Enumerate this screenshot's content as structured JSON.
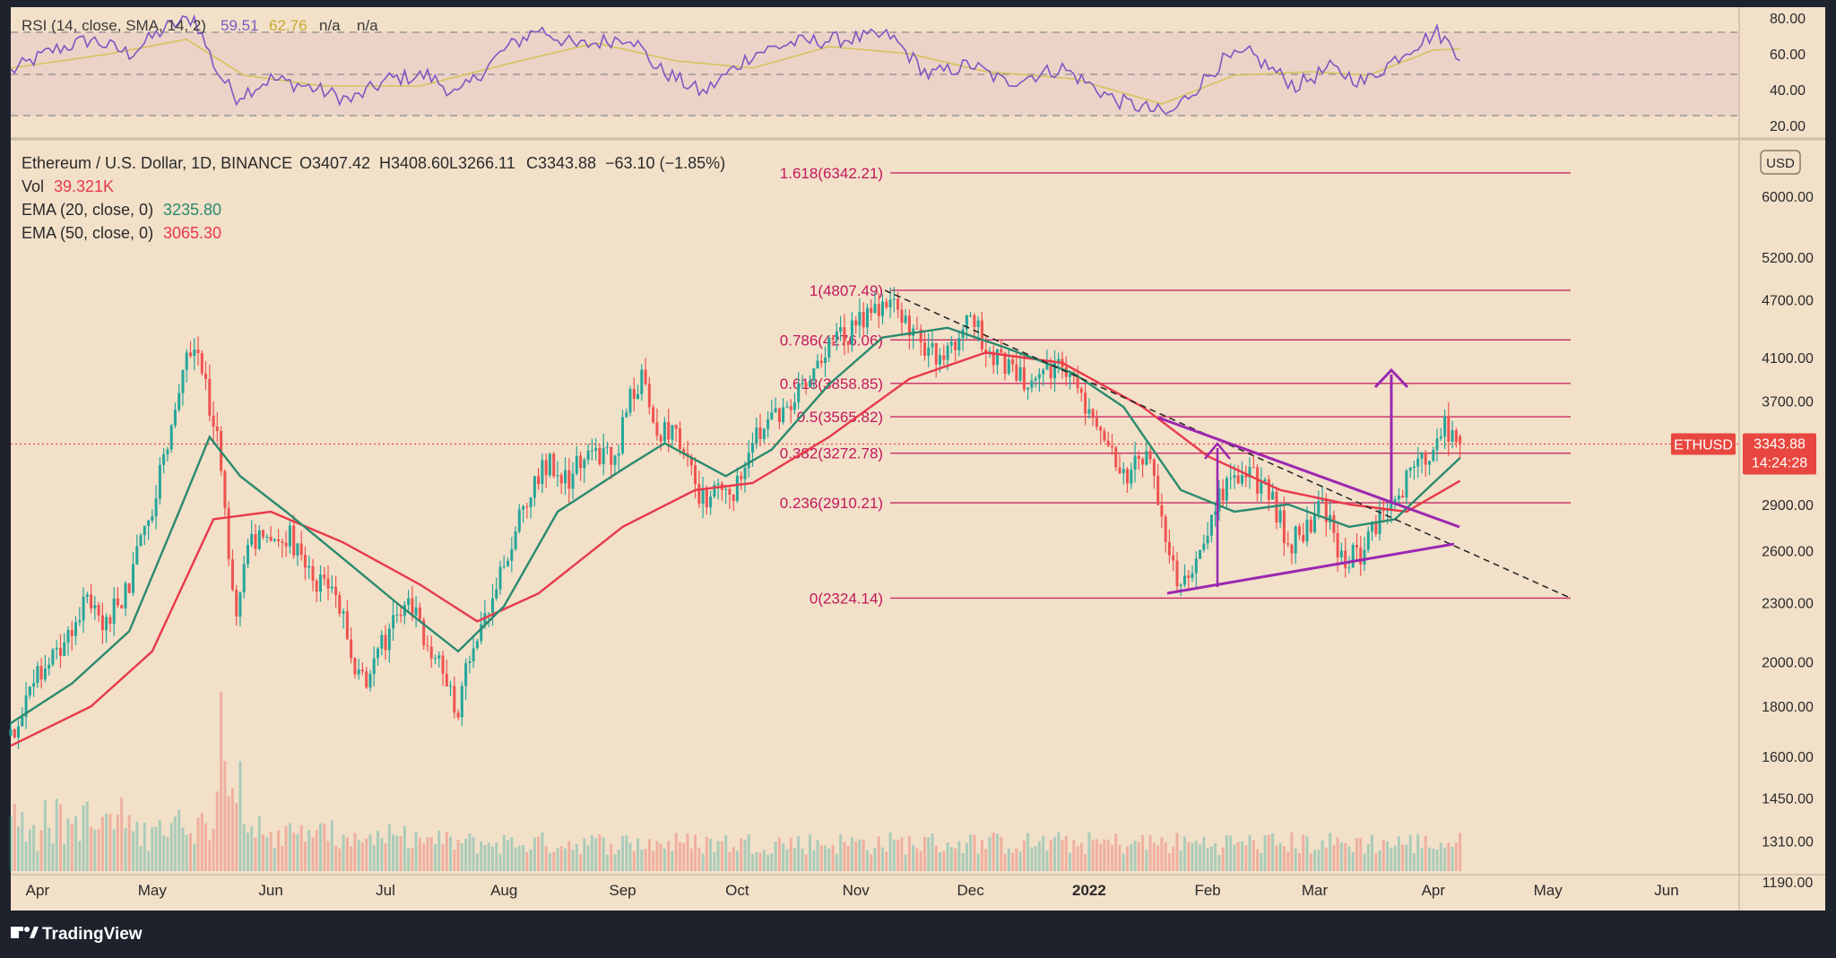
{
  "branding": {
    "logo_text": "TradingView"
  },
  "rsi": {
    "legend_label": "RSI (14, close, SMA, 14, 2)",
    "value1": "59.51",
    "value2": "62.76",
    "value3": "n/a",
    "value4": "n/a",
    "axis_ticks": [
      "80.00",
      "60.00",
      "40.00",
      "20.00"
    ],
    "upper_band": 70,
    "lower_band": 30
  },
  "legend": {
    "symbol": "Ethereum / U.S. Dollar, 1D, BINANCE",
    "o": "O3407.42",
    "h": "H3408.60",
    "l": "L3266.11",
    "c": "C3343.88",
    "change": "−63.10 (−1.85%)",
    "vol_label": "Vol",
    "vol_value": "39.321K",
    "ema20_label": "EMA (20, close, 0)",
    "ema20_value": "3235.80",
    "ema50_label": "EMA (50, close, 0)",
    "ema50_value": "3065.30"
  },
  "price_axis": {
    "currency": "USD",
    "ticks": [
      "6000.00",
      "5200.00",
      "4700.00",
      "4100.00",
      "3700.00",
      "2900.00",
      "2600.00",
      "2300.00",
      "2000.00",
      "1800.00",
      "1600.00",
      "1450.00",
      "1310.00",
      "1190.00"
    ],
    "last_price": "3343.88",
    "countdown": "14:24:28",
    "ticker": "ETHUSD"
  },
  "time_axis": {
    "labels": [
      "Apr",
      "May",
      "Jun",
      "Jul",
      "Aug",
      "Sep",
      "Oct",
      "Nov",
      "Dec",
      "2022",
      "Feb",
      "Mar",
      "Apr",
      "May",
      "Jun"
    ]
  },
  "colors": {
    "background": "#f2e0c9",
    "up_candle": "#26a69a",
    "down_candle": "#ef5350",
    "ema20": "#2a8a6e",
    "ema50": "#e8394a",
    "rsi_line": "#7e57c2",
    "rsi_sma": "#d6c25a",
    "fib": "#c2185b",
    "pattern": "#9c27b0",
    "price_tag": "#e8473f"
  },
  "chart_data": {
    "type": "candlestick",
    "title": "Ethereum / U.S. Dollar, 1D, BINANCE",
    "y_scale": "log",
    "ylim": [
      1150,
      6800
    ],
    "x_range": [
      "2021-03-25",
      "2022-06-20"
    ],
    "fib_levels": [
      {
        "label": "1.618(6342.21)",
        "ratio": "1.618",
        "value": 6342.21
      },
      {
        "label": "1(4807.49)",
        "ratio": "1",
        "value": 4807.49
      },
      {
        "label": "0.786(4276.06)",
        "ratio": "0.786",
        "value": 4276.06
      },
      {
        "label": "0.618(3858.85)",
        "ratio": "0.618",
        "value": 3858.85
      },
      {
        "label": "0.5(3565.82)",
        "ratio": "0.5",
        "value": 3565.82
      },
      {
        "label": "0.382(3272.78)",
        "ratio": "0.382",
        "value": 3272.78
      },
      {
        "label": "0.236(2910.21)",
        "ratio": "0.236",
        "value": 2910.21
      },
      {
        "label": "0(2324.14)",
        "ratio": "0",
        "value": 2324.14
      }
    ],
    "fib_line_start": "2021-11-10",
    "fib_line_end": "2022-05-08",
    "price_path": [
      [
        "2021-03-25",
        1680
      ],
      [
        "2021-04-01",
        1950
      ],
      [
        "2021-04-07",
        2080
      ],
      [
        "2021-04-13",
        2300
      ],
      [
        "2021-04-19",
        2200
      ],
      [
        "2021-04-25",
        2400
      ],
      [
        "2021-05-01",
        2900
      ],
      [
        "2021-05-05",
        3400
      ],
      [
        "2021-05-09",
        3900
      ],
      [
        "2021-05-12",
        4300
      ],
      [
        "2021-05-15",
        3800
      ],
      [
        "2021-05-18",
        3400
      ],
      [
        "2021-05-20",
        2800
      ],
      [
        "2021-05-23",
        2200
      ],
      [
        "2021-05-26",
        2700
      ],
      [
        "2021-06-01",
        2600
      ],
      [
        "2021-06-06",
        2700
      ],
      [
        "2021-06-11",
        2450
      ],
      [
        "2021-06-16",
        2400
      ],
      [
        "2021-06-20",
        2200
      ],
      [
        "2021-06-23",
        1900
      ],
      [
        "2021-06-27",
        1950
      ],
      [
        "2021-07-02",
        2150
      ],
      [
        "2021-07-07",
        2300
      ],
      [
        "2021-07-12",
        2100
      ],
      [
        "2021-07-17",
        1900
      ],
      [
        "2021-07-20",
        1780
      ],
      [
        "2021-07-24",
        2100
      ],
      [
        "2021-07-30",
        2400
      ],
      [
        "2021-08-05",
        2800
      ],
      [
        "2021-08-12",
        3200
      ],
      [
        "2021-08-18",
        3100
      ],
      [
        "2021-08-24",
        3300
      ],
      [
        "2021-08-30",
        3200
      ],
      [
        "2021-09-03",
        3750
      ],
      [
        "2021-09-06",
        3900
      ],
      [
        "2021-09-09",
        3450
      ],
      [
        "2021-09-15",
        3500
      ],
      [
        "2021-09-21",
        2900
      ],
      [
        "2021-09-25",
        3000
      ],
      [
        "2021-09-30",
        2950
      ],
      [
        "2021-10-05",
        3450
      ],
      [
        "2021-10-12",
        3550
      ],
      [
        "2021-10-18",
        3850
      ],
      [
        "2021-10-24",
        4150
      ],
      [
        "2021-10-30",
        4350
      ],
      [
        "2021-11-05",
        4550
      ],
      [
        "2021-11-10",
        4750
      ],
      [
        "2021-11-16",
        4300
      ],
      [
        "2021-11-22",
        4150
      ],
      [
        "2021-11-28",
        4300
      ],
      [
        "2021-12-01",
        4550
      ],
      [
        "2021-12-05",
        4150
      ],
      [
        "2021-12-11",
        4000
      ],
      [
        "2021-12-17",
        3850
      ],
      [
        "2021-12-24",
        4050
      ],
      [
        "2021-12-30",
        3750
      ],
      [
        "2022-01-05",
        3450
      ],
      [
        "2022-01-10",
        3100
      ],
      [
        "2022-01-16",
        3300
      ],
      [
        "2022-01-21",
        2600
      ],
      [
        "2022-01-24",
        2400
      ],
      [
        "2022-01-30",
        2600
      ],
      [
        "2022-02-05",
        3000
      ],
      [
        "2022-02-10",
        3100
      ],
      [
        "2022-02-16",
        3050
      ],
      [
        "2022-02-22",
        2650
      ],
      [
        "2022-02-26",
        2700
      ],
      [
        "2022-03-03",
        2900
      ],
      [
        "2022-03-08",
        2550
      ],
      [
        "2022-03-14",
        2600
      ],
      [
        "2022-03-20",
        2900
      ],
      [
        "2022-03-26",
        3100
      ],
      [
        "2022-03-31",
        3300
      ],
      [
        "2022-04-03",
        3500
      ],
      [
        "2022-04-06",
        3420
      ],
      [
        "2022-04-08",
        3343.88
      ]
    ],
    "ema20_path": [
      [
        "2021-03-25",
        1730
      ],
      [
        "2021-04-10",
        1900
      ],
      [
        "2021-04-25",
        2150
      ],
      [
        "2021-05-08",
        2850
      ],
      [
        "2021-05-16",
        3400
      ],
      [
        "2021-05-24",
        3100
      ],
      [
        "2021-06-05",
        2850
      ],
      [
        "2021-06-20",
        2550
      ],
      [
        "2021-07-05",
        2280
      ],
      [
        "2021-07-20",
        2050
      ],
      [
        "2021-08-01",
        2280
      ],
      [
        "2021-08-15",
        2850
      ],
      [
        "2021-09-01",
        3150
      ],
      [
        "2021-09-12",
        3350
      ],
      [
        "2021-09-28",
        3100
      ],
      [
        "2021-10-10",
        3300
      ],
      [
        "2021-10-25",
        3850
      ],
      [
        "2021-11-08",
        4300
      ],
      [
        "2021-11-25",
        4400
      ],
      [
        "2021-12-10",
        4200
      ],
      [
        "2021-12-28",
        3950
      ],
      [
        "2022-01-10",
        3650
      ],
      [
        "2022-01-25",
        3000
      ],
      [
        "2022-02-08",
        2850
      ],
      [
        "2022-02-22",
        2900
      ],
      [
        "2022-03-10",
        2750
      ],
      [
        "2022-03-22",
        2800
      ],
      [
        "2022-04-01",
        3050
      ],
      [
        "2022-04-08",
        3235.8
      ]
    ],
    "ema50_path": [
      [
        "2021-03-25",
        1640
      ],
      [
        "2021-04-15",
        1800
      ],
      [
        "2021-05-01",
        2050
      ],
      [
        "2021-05-17",
        2800
      ],
      [
        "2021-06-01",
        2850
      ],
      [
        "2021-06-20",
        2650
      ],
      [
        "2021-07-10",
        2400
      ],
      [
        "2021-07-25",
        2200
      ],
      [
        "2021-08-10",
        2350
      ],
      [
        "2021-09-01",
        2750
      ],
      [
        "2021-09-20",
        3000
      ],
      [
        "2021-10-05",
        3050
      ],
      [
        "2021-10-25",
        3400
      ],
      [
        "2021-11-15",
        3900
      ],
      [
        "2021-12-05",
        4150
      ],
      [
        "2021-12-25",
        4050
      ],
      [
        "2022-01-15",
        3650
      ],
      [
        "2022-02-01",
        3250
      ],
      [
        "2022-02-20",
        3000
      ],
      [
        "2022-03-10",
        2900
      ],
      [
        "2022-03-25",
        2850
      ],
      [
        "2022-04-08",
        3065.3
      ]
    ],
    "rsi_path": [
      [
        "2021-03-25",
        50
      ],
      [
        "2021-04-05",
        62
      ],
      [
        "2021-04-15",
        68
      ],
      [
        "2021-04-25",
        60
      ],
      [
        "2021-05-05",
        75
      ],
      [
        "2021-05-12",
        80
      ],
      [
        "2021-05-18",
        50
      ],
      [
        "2021-05-23",
        36
      ],
      [
        "2021-06-01",
        46
      ],
      [
        "2021-06-10",
        42
      ],
      [
        "2021-06-22",
        34
      ],
      [
        "2021-07-02",
        46
      ],
      [
        "2021-07-12",
        48
      ],
      [
        "2021-07-20",
        37
      ],
      [
        "2021-08-01",
        62
      ],
      [
        "2021-08-10",
        74
      ],
      [
        "2021-08-20",
        64
      ],
      [
        "2021-09-03",
        70
      ],
      [
        "2021-09-10",
        52
      ],
      [
        "2021-09-22",
        38
      ],
      [
        "2021-10-05",
        60
      ],
      [
        "2021-10-15",
        66
      ],
      [
        "2021-10-28",
        68
      ],
      [
        "2021-11-10",
        70
      ],
      [
        "2021-11-20",
        48
      ],
      [
        "2021-12-01",
        54
      ],
      [
        "2021-12-10",
        44
      ],
      [
        "2021-12-25",
        52
      ],
      [
        "2022-01-08",
        34
      ],
      [
        "2022-01-22",
        26
      ],
      [
        "2022-02-05",
        56
      ],
      [
        "2022-02-12",
        60
      ],
      [
        "2022-02-24",
        42
      ],
      [
        "2022-03-05",
        52
      ],
      [
        "2022-03-14",
        44
      ],
      [
        "2022-03-25",
        62
      ],
      [
        "2022-04-02",
        72
      ],
      [
        "2022-04-08",
        59.51
      ]
    ],
    "rsi_sma_path": [
      [
        "2021-03-25",
        52
      ],
      [
        "2021-04-20",
        60
      ],
      [
        "2021-05-10",
        68
      ],
      [
        "2021-05-25",
        48
      ],
      [
        "2021-06-15",
        42
      ],
      [
        "2021-07-10",
        42
      ],
      [
        "2021-08-05",
        56
      ],
      [
        "2021-08-25",
        66
      ],
      [
        "2021-09-15",
        56
      ],
      [
        "2021-10-05",
        52
      ],
      [
        "2021-10-25",
        64
      ],
      [
        "2021-11-15",
        60
      ],
      [
        "2021-12-05",
        50
      ],
      [
        "2021-12-28",
        46
      ],
      [
        "2022-01-20",
        32
      ],
      [
        "2022-02-08",
        48
      ],
      [
        "2022-02-28",
        50
      ],
      [
        "2022-03-15",
        48
      ],
      [
        "2022-04-01",
        62
      ],
      [
        "2022-04-08",
        62.76
      ]
    ]
  }
}
